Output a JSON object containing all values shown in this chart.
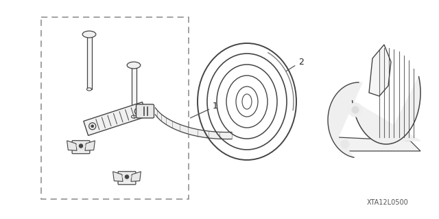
{
  "bg_color": "#ffffff",
  "fig_width": 6.4,
  "fig_height": 3.19,
  "dpi": 100,
  "part_label_1": "1",
  "part_label_2": "2",
  "footnote": "XTA12L0500",
  "footnote_fontsize": 7,
  "label_fontsize": 9,
  "line_color": "#444444",
  "dashed_color": "#888888"
}
